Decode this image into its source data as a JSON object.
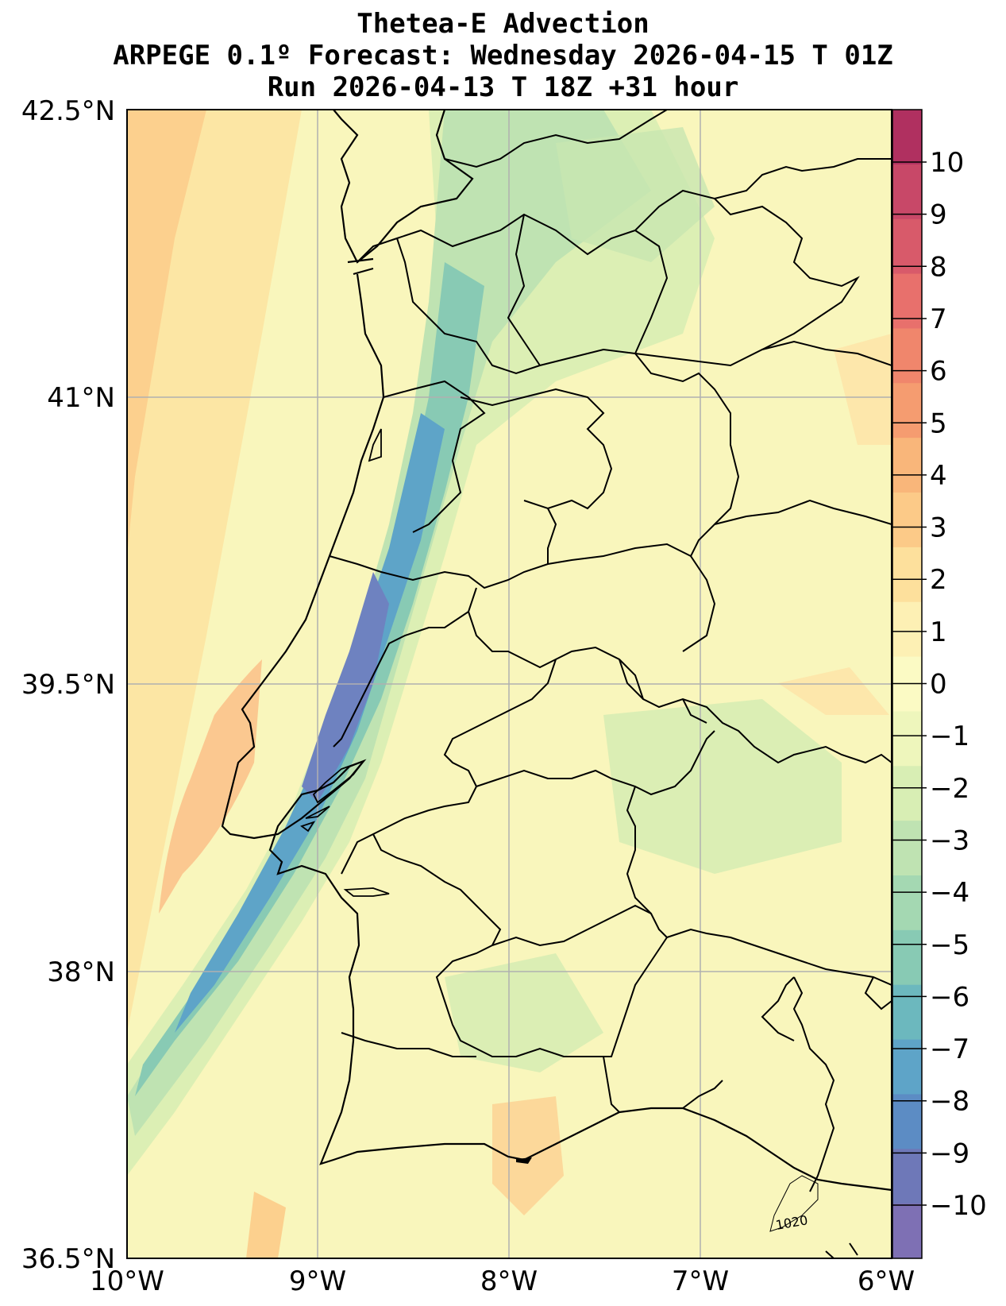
{
  "title": {
    "line1": "Thetea-E Advection",
    "line2": "ARPEGE 0.1º Forecast: Wednesday 2026-04-15 T 01Z",
    "line3": "Run 2026-04-13 T 18Z +31 hour"
  },
  "axes": {
    "lon_ticks": [
      "10°W",
      "9°W",
      "8°W",
      "7°W",
      "6°W"
    ],
    "lat_ticks": [
      "42.5°N",
      "41°N",
      "39.5°N",
      "38°N",
      "36.5°N"
    ],
    "lon_range": [
      -10,
      -6
    ],
    "lat_range": [
      36.5,
      42.5
    ],
    "grid": true
  },
  "colorbar": {
    "ticks": [
      "10",
      "9",
      "8",
      "7",
      "6",
      "5",
      "4",
      "3",
      "2",
      "1",
      "0",
      "−1",
      "−2",
      "−3",
      "−4",
      "−5",
      "−6",
      "−7",
      "−8",
      "−9",
      "−10"
    ],
    "colors": [
      "#b03060",
      "#c84868",
      "#d85a6a",
      "#e8706c",
      "#f0866c",
      "#f59c70",
      "#f9b67a",
      "#fcca88",
      "#fde09c",
      "#fdf0b4",
      "#fbfac4",
      "#eef6bc",
      "#d8eeb4",
      "#bfe3b2",
      "#a4d8b2",
      "#88cab4",
      "#6cb8be",
      "#5ea4c8",
      "#5c8cc4",
      "#6e78b8",
      "#7e70b4"
    ]
  },
  "map": {
    "annotation": "1020"
  }
}
